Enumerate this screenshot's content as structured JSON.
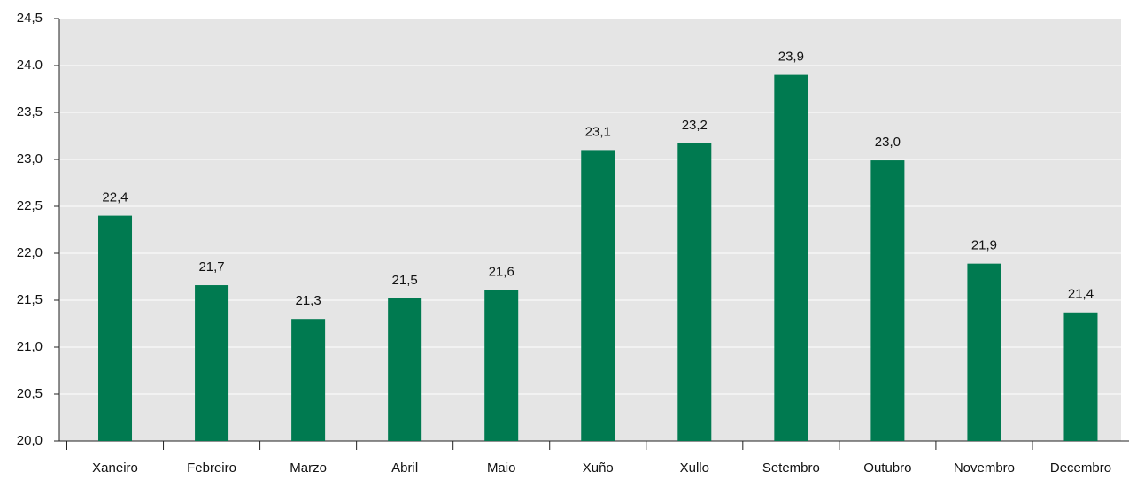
{
  "chart_data": {
    "type": "bar",
    "categories": [
      "Xaneiro",
      "Febreiro",
      "Marzo",
      "Abril",
      "Maio",
      "Xuño",
      "Xullo",
      "Setembro",
      "Outubro",
      "Novembro",
      "Decembro"
    ],
    "values": [
      22.4,
      21.66,
      21.3,
      21.52,
      21.61,
      23.1,
      23.17,
      23.9,
      22.99,
      21.89,
      21.37
    ],
    "value_labels": [
      "22,4",
      "21,7",
      "21,3",
      "21,5",
      "21,6",
      "23,1",
      "23,2",
      "23,9",
      "23,0",
      "21,9",
      "21,4"
    ],
    "color": "#007a50",
    "ylim": [
      20,
      24.5
    ],
    "yticks": [
      {
        "value": 20,
        "label": "20,0"
      },
      {
        "value": 20.5,
        "label": "20,5"
      },
      {
        "value": 21,
        "label": "21,0"
      },
      {
        "value": 21.5,
        "label": "21,5"
      },
      {
        "value": 22,
        "label": "22,0"
      },
      {
        "value": 22.5,
        "label": "22,5"
      },
      {
        "value": 23,
        "label": "23,0"
      },
      {
        "value": 23.5,
        "label": "23,5"
      },
      {
        "value": 24,
        "label": "24.0"
      },
      {
        "value": 24.5,
        "label": "24,5"
      }
    ],
    "grid": true
  }
}
